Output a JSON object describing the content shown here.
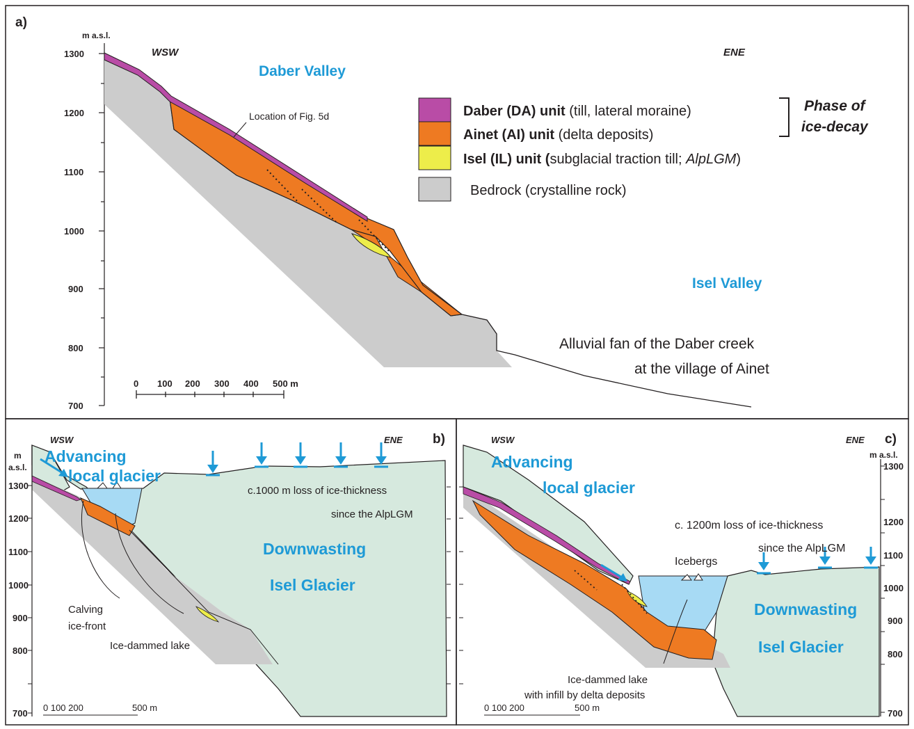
{
  "panel_a": {
    "label": "a)",
    "y_unit": "m a.s.l.",
    "y_ticks": [
      "1300",
      "1200",
      "1100",
      "1000",
      "900",
      "800",
      "700"
    ],
    "dir_left": "WSW",
    "dir_right": "ENE",
    "valley_top": "Daber Valley",
    "valley_bottom": "Isel Valley",
    "fig_location": "Location of Fig. 5d",
    "legend": {
      "daber_name": "Daber (DA) unit",
      "daber_desc": " (till, lateral moraine)",
      "ainet_name": "Ainet (AI) unit",
      "ainet_desc": " (delta deposits)",
      "isel_name": "Isel (IL) unit (",
      "isel_desc": "subglacial traction till; ",
      "isel_ital": "AlpLGM",
      "isel_close": ")",
      "bedrock": "Bedrock (crystalline rock)",
      "phase_line1": "Phase of",
      "phase_line2": "ice-decay"
    },
    "fan_line1": "Alluvial fan of the Daber creek",
    "fan_line2": "at the village of Ainet",
    "scale_ticks": [
      "0",
      "100",
      "200",
      "300",
      "400",
      "500 m"
    ]
  },
  "panel_b": {
    "label": "b)",
    "y_unit_1": "m",
    "y_unit_2": "a.s.l.",
    "y_ticks": [
      "1300",
      "1200",
      "1100",
      "1000",
      "900",
      "800",
      "700"
    ],
    "dir_left": "WSW",
    "dir_right": "ENE",
    "glacier_1": "Advancing",
    "glacier_2": "local glacier",
    "loss_1": "c.1000 m loss of ice-thickness",
    "loss_2": "since the AlpLGM",
    "down_1": "Downwasting",
    "down_2": "Isel Glacier",
    "calving_1": "Calving",
    "calving_2": "ice-front",
    "lake": "Ice-dammed lake",
    "scale": "0 100 200",
    "scale_end": "500 m"
  },
  "panel_c": {
    "label": "c)",
    "y_unit": "m a.s.l.",
    "y_ticks": [
      "1300",
      "1200",
      "1100",
      "1000",
      "900",
      "800",
      "700"
    ],
    "dir_left": "WSW",
    "dir_right": "ENE",
    "glacier_1": "Advancing",
    "glacier_2": "local glacier",
    "loss_1": "c. 1200m loss of ice-thickness",
    "loss_2": "since the AlpLGM",
    "icebergs": "Icebergs",
    "down_1": "Downwasting",
    "down_2": "Isel Glacier",
    "lake_1": "Ice-dammed lake",
    "lake_2": "with infill by delta deposits",
    "scale": "0 100 200",
    "scale_end": "500 m"
  },
  "colors": {
    "daber": "#b94ca6",
    "ainet": "#ee7a22",
    "isel": "#eded4a",
    "bedrock": "#cccccc",
    "ice": "#d6e9de",
    "lake": "#a7daf4",
    "label_blue": "#1e9ad6"
  }
}
